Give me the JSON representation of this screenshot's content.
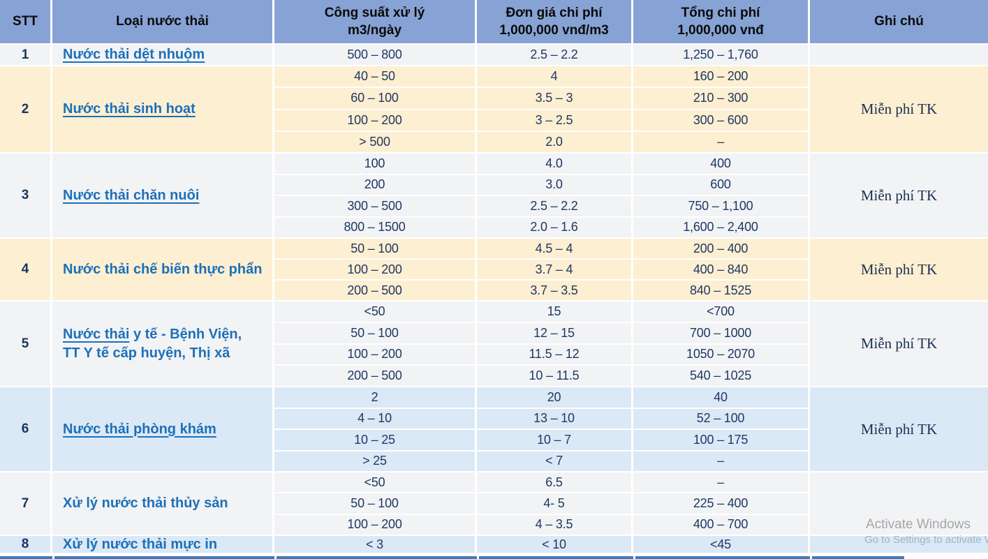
{
  "table": {
    "headers": [
      {
        "label": "STT"
      },
      {
        "label": "Loại nước thải"
      },
      {
        "label": "Công suất xử lý\nm3/ngày"
      },
      {
        "label": "Đơn giá chi phí\n1,000,000 vnđ/m3"
      },
      {
        "label": "Tổng chi phí\n1,000,000 vnđ"
      },
      {
        "label": "Ghi chú"
      }
    ],
    "groups": [
      {
        "stt": "1",
        "bg": "gray",
        "label_parts": [
          {
            "text": "Nước thải dệt nhuộm",
            "underline": true
          }
        ],
        "is_link": true,
        "rows": [
          [
            "500 – 800",
            "2.5 – 2.2",
            "1,250 – 1,760"
          ]
        ],
        "note": ""
      },
      {
        "stt": "2",
        "bg": "cream",
        "label_parts": [
          {
            "text": "Nước thải sinh hoạt",
            "underline": true
          }
        ],
        "is_link": true,
        "rows": [
          [
            "40 – 50",
            "4",
            "160 – 200"
          ],
          [
            "60 – 100",
            "3.5 – 3",
            "210 – 300"
          ],
          [
            "100 – 200",
            "3 – 2.5",
            "300 – 600"
          ],
          [
            "> 500",
            "2.0",
            "–"
          ]
        ],
        "note": "Miễn phí TK"
      },
      {
        "stt": "3",
        "bg": "gray",
        "label_parts": [
          {
            "text": "Nước thải chăn nuôi",
            "underline": true
          }
        ],
        "is_link": true,
        "rows": [
          [
            "100",
            "4.0",
            "400"
          ],
          [
            "200",
            "3.0",
            "600"
          ],
          [
            "300 – 500",
            "2.5 – 2.2",
            "750 – 1,100"
          ],
          [
            "800 – 1500",
            "2.0 – 1.6",
            "1,600 – 2,400"
          ]
        ],
        "note": "Miễn phí TK"
      },
      {
        "stt": "4",
        "bg": "cream",
        "label_parts": [
          {
            "text": "Nước thải chế biến thực phẩn",
            "underline": false
          }
        ],
        "is_link": false,
        "rows": [
          [
            "50 – 100",
            "4.5 – 4",
            "200 – 400"
          ],
          [
            "100 – 200",
            "3.7 – 4",
            "400 – 840"
          ],
          [
            "200 – 500",
            "3.7 – 3.5",
            "840 – 1525"
          ]
        ],
        "note": "Miễn phí TK"
      },
      {
        "stt": "5",
        "bg": "gray",
        "label_parts": [
          {
            "text": "Nước thải",
            "underline": true
          },
          {
            "text": " y tế - Bệnh Viện,",
            "underline": false
          },
          {
            "text": "TT Y tế cấp huyện, Thị xã",
            "underline": false,
            "break_before": true
          }
        ],
        "is_link": true,
        "rows": [
          [
            "<50",
            "15",
            "<700"
          ],
          [
            "50 – 100",
            "12 – 15",
            "700 – 1000"
          ],
          [
            "100 – 200",
            "11.5 – 12",
            "1050 – 2070"
          ],
          [
            "200 – 500",
            "10 – 11.5",
            "540 – 1025"
          ]
        ],
        "note": "Miễn phí TK"
      },
      {
        "stt": "6",
        "bg": "blue",
        "label_parts": [
          {
            "text": "Nước thải phòng khám",
            "underline": true
          }
        ],
        "is_link": true,
        "rows": [
          [
            "2",
            "20",
            "40"
          ],
          [
            "4 – 10",
            "13 – 10",
            "52 – 100"
          ],
          [
            "10 – 25",
            "10 – 7",
            "100 – 175"
          ],
          [
            "> 25",
            "< 7",
            "–"
          ]
        ],
        "note": "Miễn phí TK"
      },
      {
        "stt": "7",
        "bg": "gray",
        "label_parts": [
          {
            "text": "Xử lý nước thải thủy sản",
            "underline": false
          }
        ],
        "is_link": false,
        "rows": [
          [
            "<50",
            "6.5",
            "–"
          ],
          [
            "50 – 100",
            "4- 5",
            "225 – 400"
          ],
          [
            "100 – 200",
            "4 – 3.5",
            "400 – 700"
          ]
        ],
        "note": ""
      },
      {
        "stt": "8",
        "bg": "blue",
        "label_parts": [
          {
            "text": "Xử lý nước thải mực in",
            "underline": false
          }
        ],
        "is_link": false,
        "rows": [
          [
            "< 3",
            "< 10",
            "<45"
          ]
        ],
        "note": ""
      }
    ]
  },
  "watermark": {
    "line1": "Activate Windows",
    "line2": "Go to Settings to activate W"
  },
  "colors": {
    "header_bg": "#87A2D4",
    "row_gray": "#F2F3F5",
    "row_cream": "#FDEFD1",
    "row_blue": "#DBE8F6",
    "link_blue": "#1C70B9",
    "value_navy": "#1F3864",
    "bottom_strip_blue": "#3E7ABF"
  }
}
